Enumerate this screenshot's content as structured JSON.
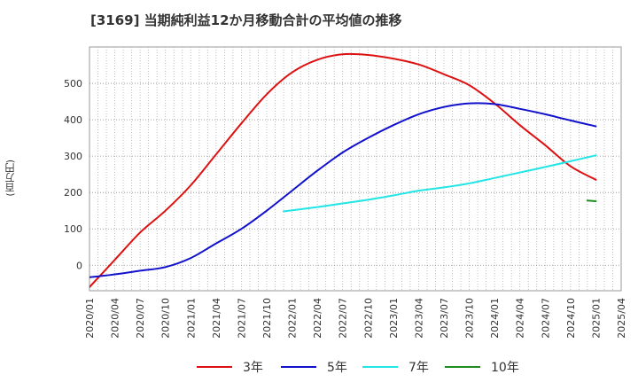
{
  "chart_data": {
    "type": "line",
    "title": "[3169]  当期純利益12か月移動合計の平均値の推移",
    "ylabel": "(百万円)",
    "xlabel": "",
    "ylim": [
      -70,
      600
    ],
    "yticks": [
      0,
      100,
      200,
      300,
      400,
      500
    ],
    "x_start": "2020-01",
    "x_end": "2025-04",
    "xticks": [
      "2020/01",
      "2020/04",
      "2020/07",
      "2020/10",
      "2021/01",
      "2021/04",
      "2021/07",
      "2021/10",
      "2022/01",
      "2022/04",
      "2022/07",
      "2022/10",
      "2023/01",
      "2023/04",
      "2023/07",
      "2023/10",
      "2024/01",
      "2024/04",
      "2024/07",
      "2024/10",
      "2025/01",
      "2025/04"
    ],
    "series": [
      {
        "name": "3年",
        "color": "#dd1111",
        "x": [
          "2020-01",
          "2020-04",
          "2020-07",
          "2020-10",
          "2021-01",
          "2021-04",
          "2021-07",
          "2021-10",
          "2022-01",
          "2022-04",
          "2022-07",
          "2022-10",
          "2023-01",
          "2023-04",
          "2023-07",
          "2023-10",
          "2024-01",
          "2024-04",
          "2024-07",
          "2024-10",
          "2025-01"
        ],
        "y": [
          -60,
          15,
          90,
          150,
          220,
          305,
          390,
          470,
          530,
          565,
          580,
          578,
          568,
          552,
          525,
          495,
          445,
          385,
          330,
          272,
          235
        ]
      },
      {
        "name": "5年",
        "color": "#1111cc",
        "x": [
          "2020-01",
          "2020-04",
          "2020-07",
          "2020-10",
          "2021-01",
          "2021-04",
          "2021-07",
          "2021-10",
          "2022-01",
          "2022-04",
          "2022-07",
          "2022-10",
          "2023-01",
          "2023-04",
          "2023-07",
          "2023-10",
          "2024-01",
          "2024-04",
          "2024-07",
          "2024-10",
          "2025-01"
        ],
        "y": [
          -33,
          -25,
          -15,
          -5,
          20,
          60,
          100,
          150,
          205,
          260,
          310,
          350,
          385,
          415,
          435,
          445,
          443,
          430,
          415,
          398,
          382
        ]
      },
      {
        "name": "7年",
        "color": "#22e5e5",
        "x": [
          "2021-12",
          "2022-04",
          "2022-07",
          "2022-10",
          "2023-01",
          "2023-04",
          "2023-07",
          "2023-10",
          "2024-01",
          "2024-04",
          "2024-07",
          "2024-10",
          "2025-01"
        ],
        "y": [
          148,
          160,
          170,
          180,
          192,
          205,
          214,
          225,
          240,
          255,
          270,
          286,
          302
        ]
      },
      {
        "name": "10年",
        "color": "#1e8c1e",
        "x": [
          "2024-12",
          "2025-01"
        ],
        "y": [
          178,
          176
        ]
      }
    ]
  }
}
